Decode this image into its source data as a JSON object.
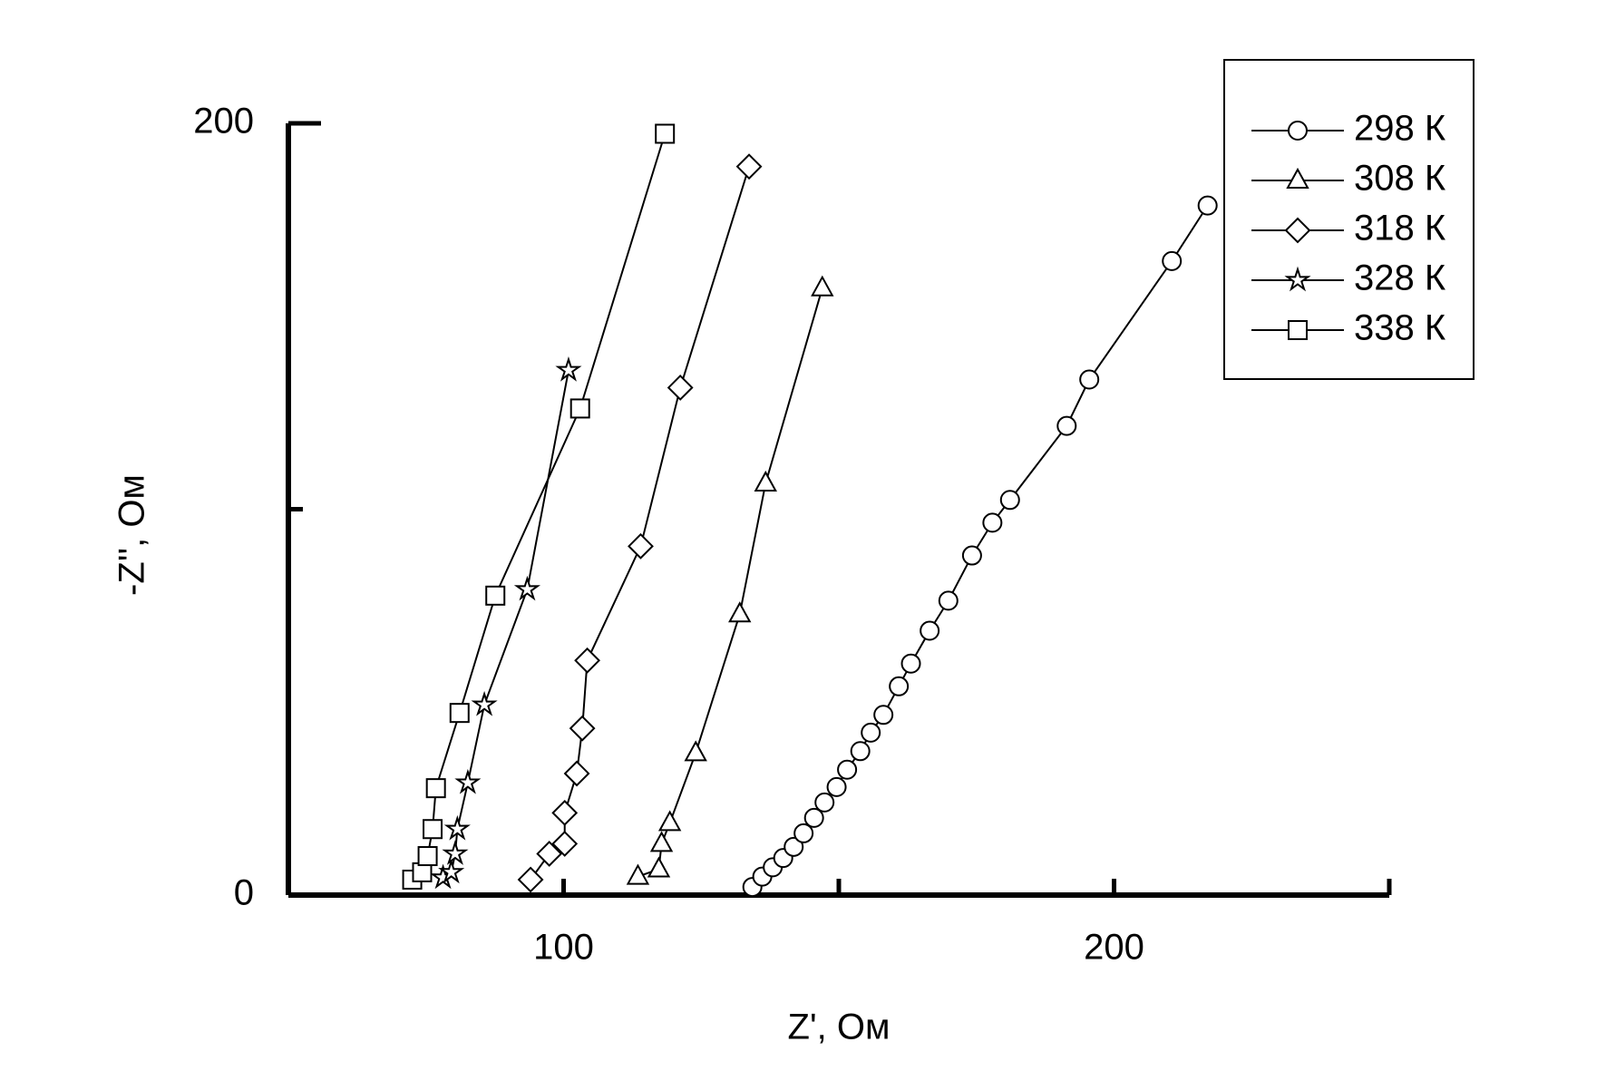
{
  "chart_data": {
    "type": "scatter",
    "xlabel": "Z', Ом",
    "ylabel": "-Z'', Ом",
    "xlim": [
      50,
      250
    ],
    "ylim": [
      0,
      200
    ],
    "xticks": [
      100,
      200
    ],
    "xminor": [
      150,
      250
    ],
    "yticks": [
      0,
      200
    ],
    "yminor": [
      100
    ],
    "legend": "upper right",
    "series": [
      {
        "name": "298 К",
        "marker": "circle",
        "color": "#000000",
        "x": [
          134.3,
          136.1,
          138.0,
          139.9,
          141.8,
          143.6,
          145.5,
          147.4,
          149.6,
          151.5,
          153.9,
          155.8,
          158.1,
          160.9,
          163.1,
          166.5,
          169.9,
          174.2,
          177.9,
          181.1,
          191.4,
          195.5,
          210.5,
          217.0
        ],
        "values": [
          2.1,
          4.8,
          7.2,
          9.6,
          12.5,
          16,
          20,
          24,
          28,
          32.5,
          37.3,
          42.1,
          46.7,
          54.1,
          60,
          68.5,
          76.3,
          88,
          96.5,
          102.4,
          121.6,
          133.6,
          164.3,
          178.7
        ]
      },
      {
        "name": "308 К",
        "marker": "triangle",
        "color": "#000000",
        "x": [
          113.5,
          117.3,
          117.8,
          119.3,
          124.0,
          132.0,
          136.7,
          147.0
        ],
        "values": [
          4.8,
          6.7,
          13.3,
          18.7,
          36.8,
          72.8,
          106.7,
          157.3
        ]
      },
      {
        "name": "318 К",
        "marker": "diamond",
        "color": "#000000",
        "x": [
          94.0,
          97.4,
          100.2,
          100.2,
          102.4,
          103.4,
          104.3,
          114.0,
          121.2,
          133.7
        ],
        "values": [
          4,
          10.7,
          13.3,
          21.3,
          31.5,
          43.2,
          60.8,
          90.4,
          131.5,
          188.8
        ]
      },
      {
        "name": "328 К",
        "marker": "star",
        "color": "#000000",
        "x": [
          78.1,
          79.6,
          80.3,
          80.7,
          82.6,
          85.6,
          93.4,
          100.9
        ],
        "values": [
          4.5,
          5.9,
          10.7,
          17.1,
          29.1,
          49.3,
          79.2,
          136
        ]
      },
      {
        "name": "338 К",
        "marker": "square",
        "color": "#000000",
        "x": [
          72.5,
          74.3,
          75.3,
          76.2,
          76.8,
          81.1,
          87.6,
          103.0,
          118.4
        ],
        "values": [
          4,
          5.9,
          10.1,
          17.1,
          27.7,
          47.2,
          77.6,
          126.1,
          197.3
        ]
      }
    ]
  }
}
